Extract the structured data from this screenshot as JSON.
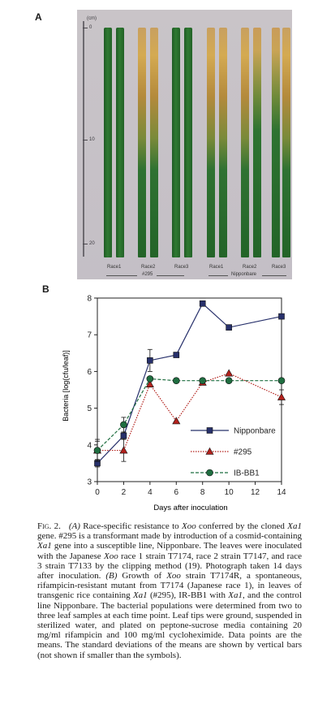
{
  "panel_a": {
    "label": "A",
    "ruler": {
      "unit": "(cm)",
      "marks": [
        "0",
        "10",
        "20"
      ]
    },
    "race_labels": [
      "Race1",
      "Race2",
      "Race3",
      "Race1",
      "Race2",
      "Race3"
    ],
    "group_labels": [
      "#295",
      "Nipponbare"
    ]
  },
  "panel_b": {
    "label": "B"
  },
  "chart_data": {
    "type": "line",
    "xlabel": "Days after inoculation",
    "ylabel": "Bacteria [log(cfu/leaf)]",
    "x": [
      0,
      2,
      4,
      6,
      8,
      10,
      14
    ],
    "xticks": [
      "0",
      "2",
      "4",
      "6",
      "8",
      "10",
      "12",
      "14"
    ],
    "yticks": [
      "3",
      "4",
      "5",
      "6",
      "7",
      "8"
    ],
    "xlim": [
      0,
      14
    ],
    "ylim": [
      3,
      8
    ],
    "series": [
      {
        "name": "Nipponbare",
        "marker": "square",
        "color": "#27306b",
        "line": "solid",
        "values": [
          3.5,
          4.25,
          6.3,
          6.45,
          7.85,
          7.2,
          7.5
        ],
        "error": [
          0.1,
          0.1,
          0.3,
          0,
          0,
          0,
          0
        ]
      },
      {
        "name": "#295",
        "marker": "triangle",
        "color": "#b3211c",
        "line": "dotted",
        "values": [
          3.85,
          3.85,
          5.65,
          4.65,
          5.7,
          5.95,
          5.3
        ],
        "error": [
          0.3,
          0.3,
          0,
          0,
          0,
          0,
          0.2
        ]
      },
      {
        "name": "IB-BB1",
        "marker": "circle",
        "color": "#1f6e40",
        "line": "dashed",
        "values": [
          3.85,
          4.55,
          5.8,
          5.75,
          5.75,
          5.75,
          5.75
        ],
        "error": [
          0.25,
          0.2,
          0,
          0,
          0,
          0,
          0
        ]
      }
    ]
  },
  "caption": {
    "fig_label": "Fig. 2.",
    "a_mark": "(A)",
    "t1": " Race-specific resistance to ",
    "xoo": "Xoo",
    "t2": " conferred by the cloned ",
    "xa1": "Xa1",
    "t3": " gene. #295 is a transformant made by introduction of a cosmid-containing ",
    "t4": " gene into a susceptible line, Nipponbare. The leaves were inoculated with the Japanese ",
    "t5": " race 1 strain T7174, race 2 strain T7147, and race 3 strain T7133 by the clipping method (19). Photograph taken 14 days after inoculation. ",
    "b_mark": "(B)",
    "t6": " Growth of ",
    "t7": " strain T7174R, a spontaneous, rifampicin-resistant mutant from T7174 (Japanese race 1), in leaves of transgenic rice containing ",
    "t8": " (#295), IR-BB1 with ",
    "t9": ", and the control line Nipponbare. The bacterial populations were determined from two to three leaf samples at each time point. Leaf tips were ground, suspended in sterilized water, and plated on peptone-sucrose media containing 20 mg/ml rifampicin and 100 mg/ml cycloheximide. Data points are the means. The standard deviations of the means are shown by vertical bars (not shown if smaller than the symbols)."
  }
}
